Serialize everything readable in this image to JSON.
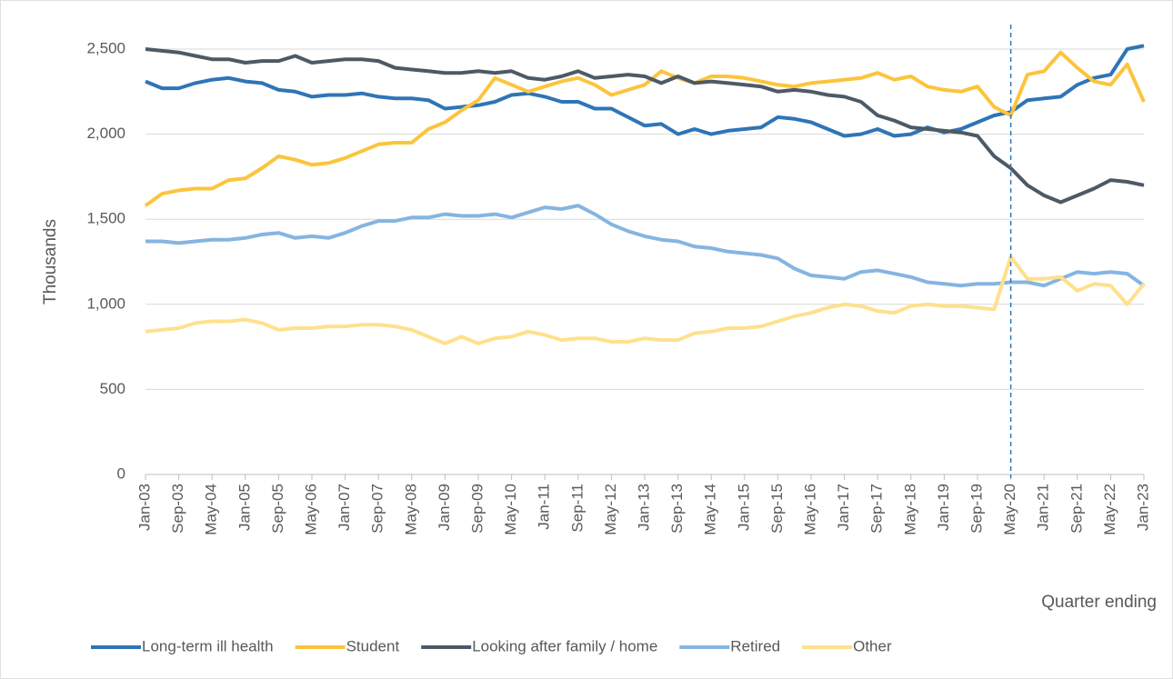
{
  "chart_data": {
    "type": "line",
    "categories": [
      "Jan-03",
      null,
      "Sep-03",
      null,
      "May-04",
      null,
      "Jan-05",
      null,
      "Sep-05",
      null,
      "May-06",
      null,
      "Jan-07",
      null,
      "Sep-07",
      null,
      "May-08",
      null,
      "Jan-09",
      null,
      "Sep-09",
      null,
      "May-10",
      null,
      "Jan-11",
      null,
      "Sep-11",
      null,
      "May-12",
      null,
      "Jan-13",
      null,
      "Sep-13",
      null,
      "May-14",
      null,
      "Jan-15",
      null,
      "Sep-15",
      null,
      "May-16",
      null,
      "Jan-17",
      null,
      "Sep-17",
      null,
      "May-18",
      null,
      "Jan-19",
      null,
      "Sep-19",
      null,
      "May-20",
      null,
      "Jan-21",
      null,
      "Sep-21",
      null,
      "May-22",
      null,
      "Jan-23"
    ],
    "series": [
      {
        "name": "Long-term ill health",
        "color": "#2e75b6",
        "values": [
          2310,
          2270,
          2270,
          2300,
          2320,
          2330,
          2310,
          2300,
          2260,
          2250,
          2220,
          2230,
          2230,
          2240,
          2220,
          2210,
          2210,
          2200,
          2150,
          2160,
          2170,
          2190,
          2230,
          2240,
          2220,
          2190,
          2190,
          2150,
          2150,
          2100,
          2050,
          2060,
          2000,
          2030,
          2000,
          2020,
          2030,
          2040,
          2100,
          2090,
          2070,
          2030,
          1990,
          2000,
          2030,
          1990,
          2000,
          2040,
          2010,
          2030,
          2070,
          2110,
          2130,
          2200,
          2210,
          2220,
          2290,
          2330,
          2350,
          2500,
          2520
        ]
      },
      {
        "name": "Student",
        "color": "#fcc43c",
        "values": [
          1580,
          1650,
          1670,
          1680,
          1680,
          1730,
          1740,
          1800,
          1870,
          1850,
          1820,
          1830,
          1860,
          1900,
          1940,
          1950,
          1950,
          2030,
          2070,
          2140,
          2200,
          2330,
          2290,
          2250,
          2280,
          2310,
          2330,
          2290,
          2230,
          2260,
          2290,
          2370,
          2330,
          2300,
          2340,
          2340,
          2330,
          2310,
          2290,
          2280,
          2300,
          2310,
          2320,
          2330,
          2360,
          2320,
          2340,
          2280,
          2260,
          2250,
          2280,
          2160,
          2110,
          2350,
          2370,
          2480,
          2390,
          2310,
          2290,
          2410,
          2190
        ]
      },
      {
        "name": "Looking after family / home",
        "color": "#4d5a65",
        "values": [
          2500,
          2490,
          2480,
          2460,
          2440,
          2440,
          2420,
          2430,
          2430,
          2460,
          2420,
          2430,
          2440,
          2440,
          2430,
          2390,
          2380,
          2370,
          2360,
          2360,
          2370,
          2360,
          2370,
          2330,
          2320,
          2340,
          2370,
          2330,
          2340,
          2350,
          2340,
          2300,
          2340,
          2300,
          2310,
          2300,
          2290,
          2280,
          2250,
          2260,
          2250,
          2230,
          2220,
          2190,
          2110,
          2080,
          2040,
          2030,
          2020,
          2010,
          1990,
          1870,
          1800,
          1700,
          1640,
          1600,
          1640,
          1680,
          1730,
          1720,
          1700
        ]
      },
      {
        "name": "Retired",
        "color": "#85b5e0",
        "values": [
          1370,
          1370,
          1360,
          1370,
          1380,
          1380,
          1390,
          1410,
          1420,
          1390,
          1400,
          1390,
          1420,
          1460,
          1490,
          1490,
          1510,
          1510,
          1530,
          1520,
          1520,
          1530,
          1510,
          1540,
          1570,
          1560,
          1580,
          1530,
          1470,
          1430,
          1400,
          1380,
          1370,
          1340,
          1330,
          1310,
          1300,
          1290,
          1270,
          1210,
          1170,
          1160,
          1150,
          1190,
          1200,
          1180,
          1160,
          1130,
          1120,
          1110,
          1120,
          1120,
          1130,
          1130,
          1110,
          1150,
          1190,
          1180,
          1190,
          1180,
          1110
        ]
      },
      {
        "name": "Other",
        "color": "#ffe08c",
        "values": [
          840,
          850,
          860,
          890,
          900,
          900,
          910,
          890,
          850,
          860,
          860,
          870,
          870,
          880,
          880,
          870,
          850,
          810,
          770,
          810,
          770,
          800,
          810,
          840,
          820,
          790,
          800,
          800,
          780,
          780,
          800,
          790,
          790,
          830,
          840,
          860,
          860,
          870,
          900,
          930,
          950,
          980,
          1000,
          990,
          960,
          950,
          990,
          1000,
          990,
          990,
          980,
          970,
          1280,
          1150,
          1150,
          1160,
          1080,
          1120,
          1110,
          1000,
          1120
        ]
      }
    ],
    "y_label": "Thousands",
    "x_label": "Quarter ending",
    "ylim": [
      0,
      2500
    ],
    "yticks": [
      0,
      500,
      {
        "value": 1000,
        "label": "1,000"
      },
      {
        "value": 1500,
        "label": "1,500"
      },
      {
        "value": 2000,
        "label": "2,000"
      },
      {
        "value": 2500,
        "label": "2,500"
      }
    ],
    "grid": true,
    "reference_line": "May-20",
    "legend": "bottom"
  }
}
